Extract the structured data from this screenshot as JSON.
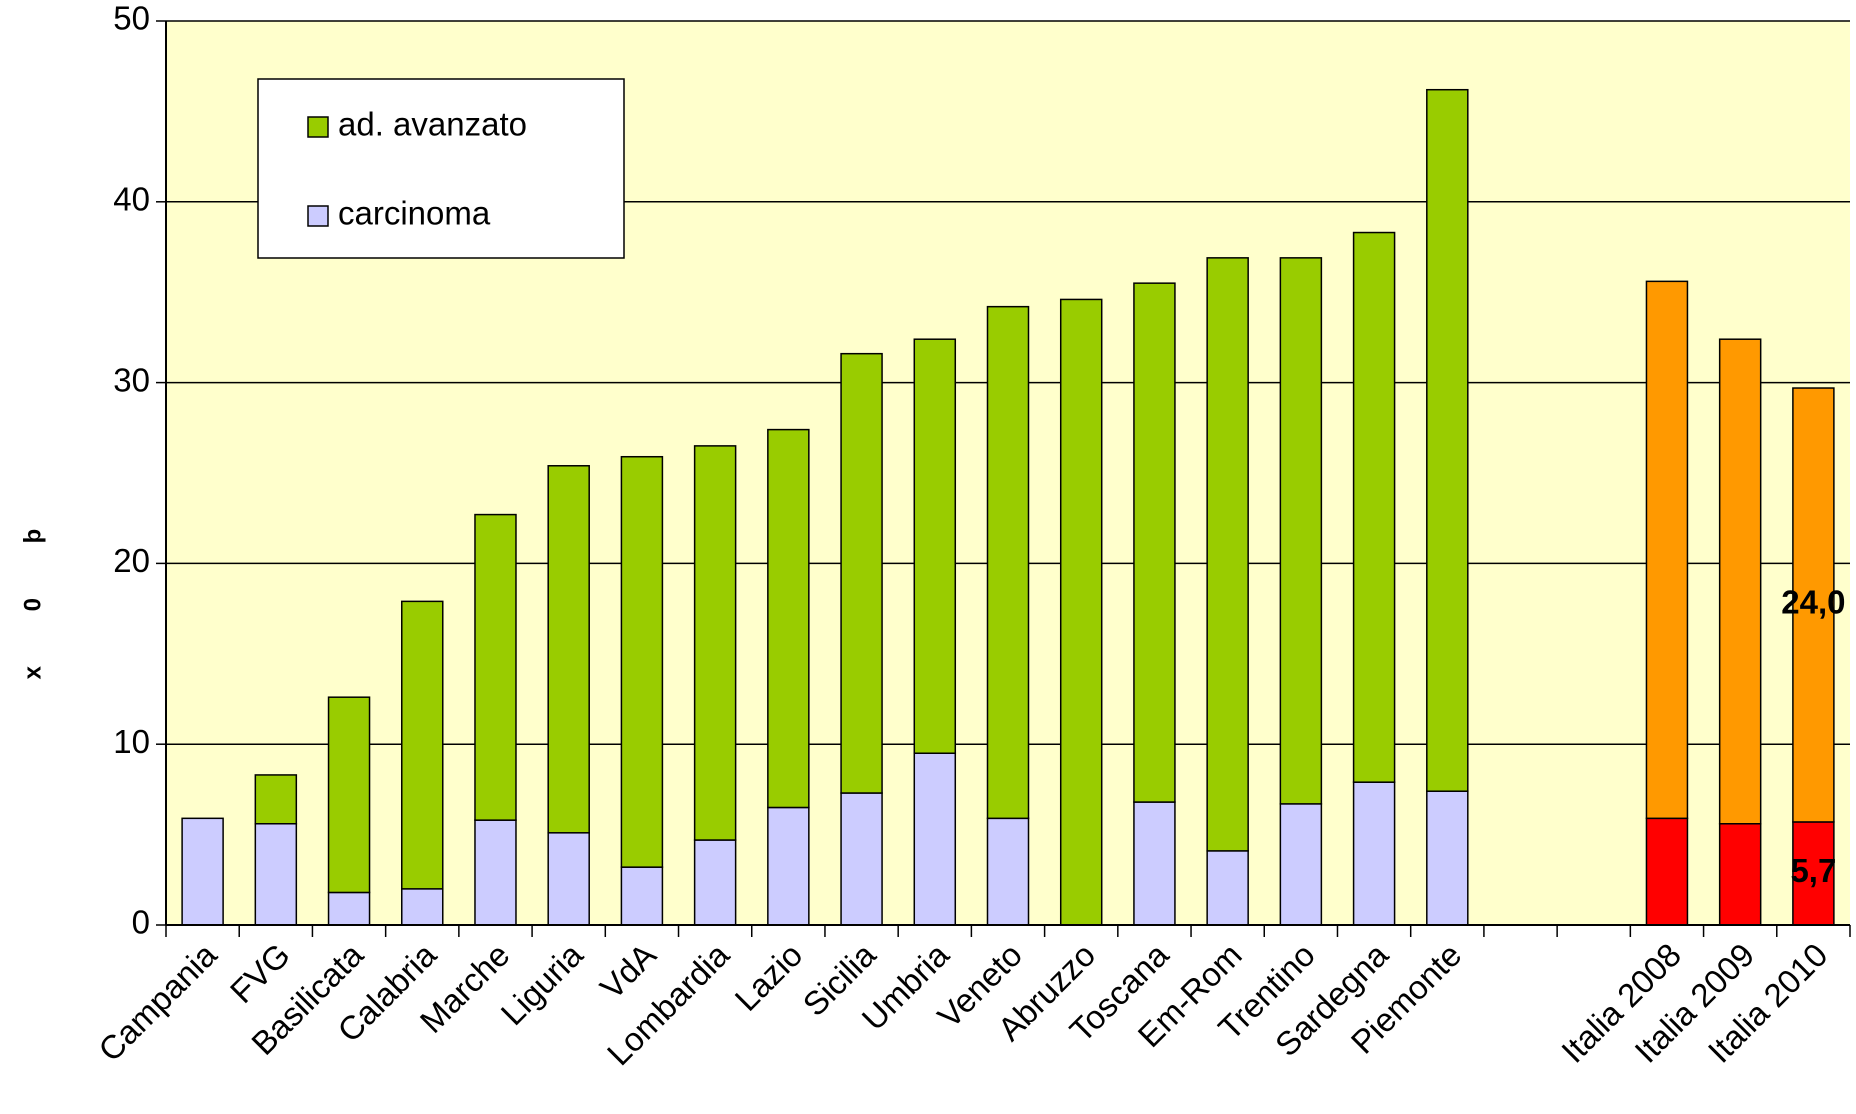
{
  "chart_data": {
    "type": "stacked_bar",
    "y_label": "x 0 þ",
    "categories": [
      "Campania",
      "FVG",
      "Basilicata",
      "Calabria",
      "Marche",
      "Liguria",
      "VdA",
      "Lombardia",
      "Lazio",
      "Sicilia",
      "Umbria",
      "Veneto",
      "Abruzzo",
      "Toscana",
      "Em-Rom",
      "Trentino",
      "Sardegna",
      "Piemonte",
      null,
      null,
      "Italia 2008",
      "Italia 2009",
      "Italia 2010"
    ],
    "series": [
      {
        "name": "carcinoma",
        "color": "#ccccff",
        "colors": [
          "#ccccff",
          "#ccccff",
          "#ccccff",
          "#ccccff",
          "#ccccff",
          "#ccccff",
          "#ccccff",
          "#ccccff",
          "#ccccff",
          "#ccccff",
          "#ccccff",
          "#ccccff",
          "#ccccff",
          "#ccccff",
          "#ccccff",
          "#ccccff",
          "#ccccff",
          "#ccccff",
          null,
          null,
          "#ff0000",
          "#ff0000",
          "#ff0000"
        ],
        "values": [
          5.9,
          5.6,
          1.8,
          2.0,
          5.8,
          5.1,
          3.2,
          4.7,
          6.5,
          7.3,
          9.5,
          5.9,
          0,
          6.8,
          4.1,
          6.7,
          7.9,
          7.4,
          null,
          null,
          5.9,
          5.6,
          5.7
        ],
        "value_labels": [
          null,
          null,
          null,
          null,
          null,
          null,
          null,
          null,
          null,
          null,
          null,
          null,
          null,
          null,
          null,
          null,
          null,
          null,
          null,
          null,
          null,
          null,
          "5,7"
        ]
      },
      {
        "name": "ad. avanzato",
        "color": "#99cc00",
        "colors": [
          "#99cc00",
          "#99cc00",
          "#99cc00",
          "#99cc00",
          "#99cc00",
          "#99cc00",
          "#99cc00",
          "#99cc00",
          "#99cc00",
          "#99cc00",
          "#99cc00",
          "#99cc00",
          "#99cc00",
          "#99cc00",
          "#99cc00",
          "#99cc00",
          "#99cc00",
          "#99cc00",
          null,
          null,
          "#ff9900",
          "#ff9900",
          "#ff9900"
        ],
        "values": [
          0,
          2.7,
          10.8,
          15.9,
          16.9,
          20.3,
          22.7,
          21.8,
          20.9,
          24.3,
          22.9,
          28.3,
          34.6,
          28.7,
          32.8,
          30.2,
          30.4,
          38.8,
          null,
          null,
          29.7,
          26.8,
          24.0
        ],
        "value_labels": [
          null,
          null,
          null,
          null,
          null,
          null,
          null,
          null,
          null,
          null,
          null,
          null,
          null,
          null,
          null,
          null,
          null,
          null,
          null,
          null,
          null,
          null,
          "24,0"
        ]
      }
    ],
    "ylim": [
      0,
      50
    ],
    "yticks": [
      0,
      10,
      20,
      30,
      40,
      50
    ],
    "grid": true,
    "legend": "top-left",
    "plot_background": "#ffffcc"
  }
}
